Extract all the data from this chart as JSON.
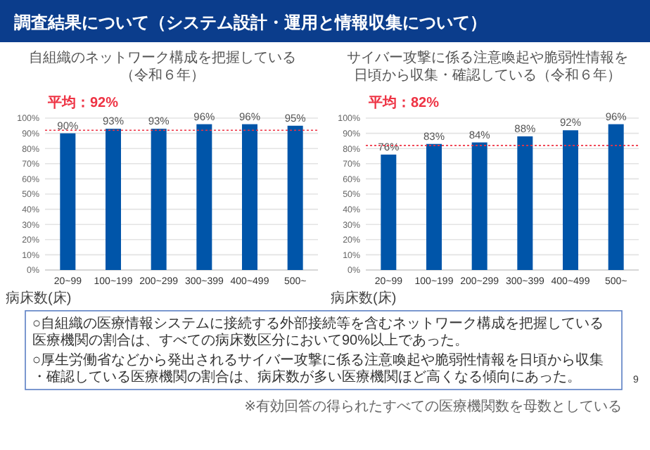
{
  "chart_data": [
    {
      "type": "bar",
      "title": "自組織のネットワーク構成を把握している",
      "subtitle": "（令和６年）",
      "xlabel": "病床数(床)",
      "categories": [
        "20~99",
        "100~199",
        "200~299",
        "300~399",
        "400~499",
        "500~"
      ],
      "values": [
        90,
        93,
        93,
        96,
        96,
        95
      ],
      "value_labels": [
        "90%",
        "93%",
        "93%",
        "96%",
        "96%",
        "95%"
      ],
      "color": "#0055a9",
      "ylim": [
        0,
        100
      ],
      "yticks": [
        {
          "value": 0,
          "label": "0%"
        },
        {
          "value": 10,
          "label": "10%"
        },
        {
          "value": 20,
          "label": "20%"
        },
        {
          "value": 30,
          "label": "30%"
        },
        {
          "value": 40,
          "label": "40%"
        },
        {
          "value": 50,
          "label": "50%"
        },
        {
          "value": 60,
          "label": "60%"
        },
        {
          "value": 70,
          "label": "70%"
        },
        {
          "value": 80,
          "label": "80%"
        },
        {
          "value": 90,
          "label": "90%"
        },
        {
          "value": 100,
          "label": "100%"
        }
      ],
      "grid": "y",
      "ref_lines": [
        {
          "axis": "y",
          "value": 92,
          "label": "平均：92%",
          "color": "#ee3344",
          "line_style": "dotted"
        }
      ],
      "annotations": [
        "調査結果について（システム設計・運用と情報収集について）",
        "○自組織の医療情報システムに接続する外部接続等を含むネットワーク構成を把握している医療機関の割合は、すべての病床数区分において90%以上であった。",
        "○厚生労働省などから発出されるサイバー攻撃に係る注意喚起や脆弱性情報を日頃から収集・確認している医療機関の割合は、病床数が多い医療機関ほど高くなる傾向にあった。",
        "※有効回答の得られたすべての医療機関数を母数としている",
        "9"
      ]
    },
    {
      "type": "bar",
      "title": "サイバー攻撃に係る注意喚起や脆弱性情報を日頃から収集・確認している（令和６年）",
      "xlabel": "病床数(床)",
      "categories": [
        "20~99",
        "100~199",
        "200~299",
        "300~399",
        "400~499",
        "500~"
      ],
      "values": [
        76,
        83,
        84,
        88,
        92,
        96
      ],
      "value_labels": [
        "76%",
        "83%",
        "84%",
        "88%",
        "92%",
        "96%"
      ],
      "color": "#0055a9",
      "ylim": [
        0,
        100
      ],
      "yticks": [
        {
          "value": 0,
          "label": "0%"
        },
        {
          "value": 10,
          "label": "10%"
        },
        {
          "value": 20,
          "label": "20%"
        },
        {
          "value": 30,
          "label": "30%"
        },
        {
          "value": 40,
          "label": "40%"
        },
        {
          "value": 50,
          "label": "50%"
        },
        {
          "value": 60,
          "label": "60%"
        },
        {
          "value": 70,
          "label": "70%"
        },
        {
          "value": 80,
          "label": "80%"
        },
        {
          "value": 90,
          "label": "90%"
        },
        {
          "value": 100,
          "label": "100%"
        }
      ],
      "grid": "y",
      "ref_lines": [
        {
          "axis": "y",
          "value": 82,
          "label": "平均：82%",
          "color": "#ee3344",
          "line_style": "dotted"
        }
      ]
    }
  ]
}
